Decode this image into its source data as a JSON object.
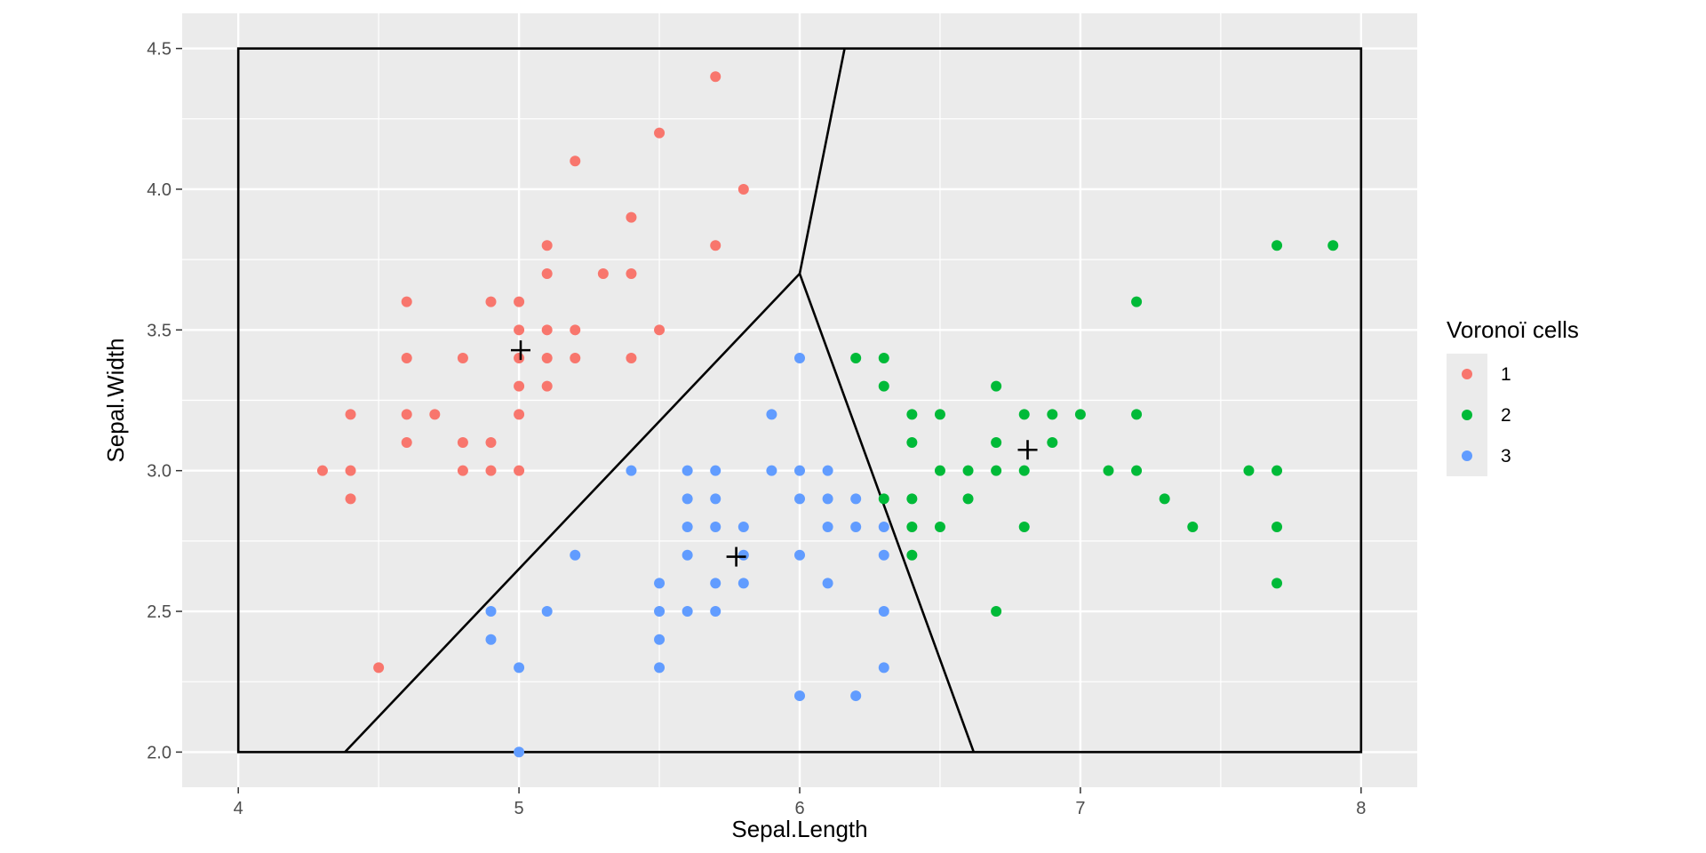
{
  "chart_data": {
    "type": "scatter",
    "xlabel": "Sepal.Length",
    "ylabel": "Sepal.Width",
    "xlim": [
      3.8,
      8.2
    ],
    "ylim": [
      1.875,
      4.625
    ],
    "x_ticks": [
      "4",
      "5",
      "6",
      "7",
      "8"
    ],
    "y_ticks": [
      "2.0",
      "2.5",
      "3.0",
      "3.5",
      "4.0",
      "4.5"
    ],
    "x_tick_values": [
      4,
      5,
      6,
      7,
      8
    ],
    "y_tick_values": [
      2.0,
      2.5,
      3.0,
      3.5,
      4.0,
      4.5
    ],
    "grid": true,
    "legend": {
      "title": "Voronoï cells",
      "placement": "right",
      "entries": [
        {
          "label": "1",
          "color": "#F8766D"
        },
        {
          "label": "2",
          "color": "#00BA38"
        },
        {
          "label": "3",
          "color": "#619CFF"
        }
      ]
    },
    "series": [
      {
        "name": "1",
        "color": "#F8766D",
        "points": [
          [
            5.7,
            4.4
          ],
          [
            5.5,
            4.2
          ],
          [
            5.2,
            4.1
          ],
          [
            5.8,
            4.0
          ],
          [
            5.4,
            3.9
          ],
          [
            5.1,
            3.8
          ],
          [
            5.7,
            3.8
          ],
          [
            5.1,
            3.7
          ],
          [
            5.3,
            3.7
          ],
          [
            5.4,
            3.7
          ],
          [
            4.6,
            3.6
          ],
          [
            4.9,
            3.6
          ],
          [
            5.0,
            3.6
          ],
          [
            5.0,
            3.5
          ],
          [
            5.1,
            3.5
          ],
          [
            5.2,
            3.5
          ],
          [
            5.5,
            3.5
          ],
          [
            4.6,
            3.4
          ],
          [
            4.8,
            3.4
          ],
          [
            5.0,
            3.4
          ],
          [
            5.1,
            3.4
          ],
          [
            5.2,
            3.4
          ],
          [
            5.4,
            3.4
          ],
          [
            5.0,
            3.3
          ],
          [
            5.1,
            3.3
          ],
          [
            4.4,
            3.2
          ],
          [
            4.6,
            3.2
          ],
          [
            4.7,
            3.2
          ],
          [
            5.0,
            3.2
          ],
          [
            4.6,
            3.1
          ],
          [
            4.8,
            3.1
          ],
          [
            4.9,
            3.1
          ],
          [
            4.3,
            3.0
          ],
          [
            4.4,
            3.0
          ],
          [
            4.8,
            3.0
          ],
          [
            4.9,
            3.0
          ],
          [
            5.0,
            3.0
          ],
          [
            4.4,
            2.9
          ],
          [
            4.5,
            2.3
          ]
        ]
      },
      {
        "name": "2",
        "color": "#00BA38",
        "points": [
          [
            7.7,
            3.8
          ],
          [
            7.9,
            3.8
          ],
          [
            7.2,
            3.6
          ],
          [
            6.2,
            3.4
          ],
          [
            6.3,
            3.4
          ],
          [
            6.3,
            3.3
          ],
          [
            6.7,
            3.3
          ],
          [
            6.4,
            3.2
          ],
          [
            6.5,
            3.2
          ],
          [
            6.8,
            3.2
          ],
          [
            6.9,
            3.2
          ],
          [
            7.0,
            3.2
          ],
          [
            7.2,
            3.2
          ],
          [
            6.4,
            3.1
          ],
          [
            6.7,
            3.1
          ],
          [
            6.9,
            3.1
          ],
          [
            6.5,
            3.0
          ],
          [
            6.6,
            3.0
          ],
          [
            6.7,
            3.0
          ],
          [
            6.8,
            3.0
          ],
          [
            7.1,
            3.0
          ],
          [
            7.2,
            3.0
          ],
          [
            7.6,
            3.0
          ],
          [
            7.7,
            3.0
          ],
          [
            6.3,
            2.9
          ],
          [
            6.4,
            2.9
          ],
          [
            6.6,
            2.9
          ],
          [
            7.3,
            2.9
          ],
          [
            6.4,
            2.8
          ],
          [
            6.5,
            2.8
          ],
          [
            6.8,
            2.8
          ],
          [
            7.4,
            2.8
          ],
          [
            7.7,
            2.8
          ],
          [
            6.4,
            2.7
          ],
          [
            7.7,
            2.6
          ],
          [
            6.7,
            2.5
          ]
        ]
      },
      {
        "name": "3",
        "color": "#619CFF",
        "points": [
          [
            6.0,
            3.4
          ],
          [
            5.9,
            3.2
          ],
          [
            5.4,
            3.0
          ],
          [
            5.6,
            3.0
          ],
          [
            5.7,
            3.0
          ],
          [
            5.9,
            3.0
          ],
          [
            6.0,
            3.0
          ],
          [
            6.1,
            3.0
          ],
          [
            5.6,
            2.9
          ],
          [
            5.7,
            2.9
          ],
          [
            6.0,
            2.9
          ],
          [
            6.1,
            2.9
          ],
          [
            6.2,
            2.9
          ],
          [
            5.6,
            2.8
          ],
          [
            5.7,
            2.8
          ],
          [
            5.8,
            2.8
          ],
          [
            6.1,
            2.8
          ],
          [
            6.2,
            2.8
          ],
          [
            6.3,
            2.8
          ],
          [
            5.2,
            2.7
          ],
          [
            5.6,
            2.7
          ],
          [
            5.8,
            2.7
          ],
          [
            6.0,
            2.7
          ],
          [
            6.3,
            2.7
          ],
          [
            5.5,
            2.6
          ],
          [
            5.7,
            2.6
          ],
          [
            5.8,
            2.6
          ],
          [
            6.1,
            2.6
          ],
          [
            4.9,
            2.5
          ],
          [
            5.1,
            2.5
          ],
          [
            5.5,
            2.5
          ],
          [
            5.6,
            2.5
          ],
          [
            5.7,
            2.5
          ],
          [
            6.3,
            2.5
          ],
          [
            4.9,
            2.4
          ],
          [
            5.5,
            2.4
          ],
          [
            5.0,
            2.3
          ],
          [
            5.5,
            2.3
          ],
          [
            6.3,
            2.3
          ],
          [
            6.0,
            2.2
          ],
          [
            6.2,
            2.2
          ],
          [
            5.0,
            2.0
          ]
        ]
      }
    ],
    "centroids": [
      [
        5.006,
        3.428
      ],
      [
        6.812,
        3.074
      ],
      [
        5.774,
        2.694
      ]
    ],
    "bounding_box": {
      "x": [
        4,
        8
      ],
      "y": [
        2,
        4.5
      ]
    },
    "voronoi_edges": [
      [
        [
          6.0,
          3.7
        ],
        [
          6.16,
          4.5
        ]
      ],
      [
        [
          6.0,
          3.7
        ],
        [
          4.38,
          2.0
        ]
      ],
      [
        [
          6.0,
          3.7
        ],
        [
          6.62,
          2.0
        ]
      ]
    ]
  }
}
